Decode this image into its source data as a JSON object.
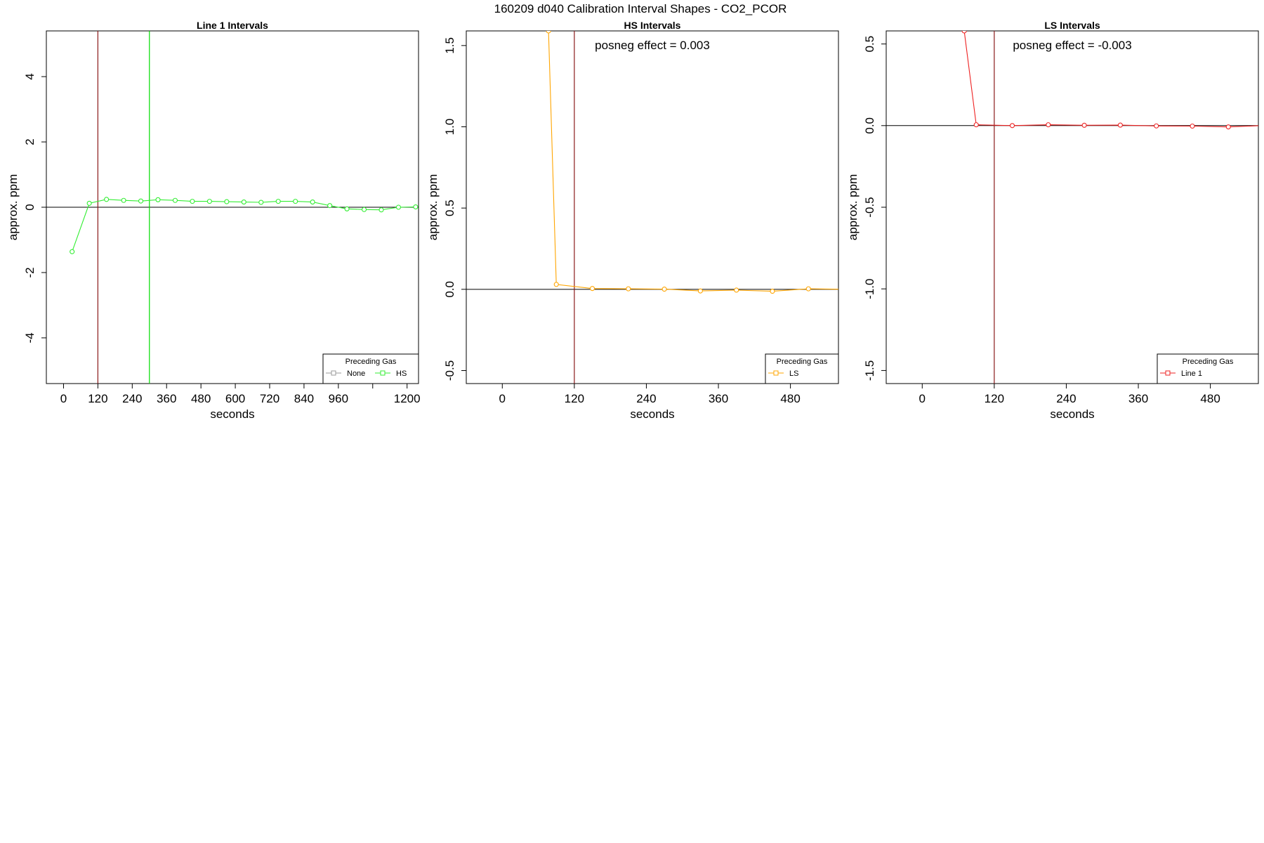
{
  "figure": {
    "title": "160209  d040   Calibration Interval Shapes - CO2_PCOR"
  },
  "chart_data": [
    {
      "type": "line",
      "title": "Line 1 Intervals",
      "xlabel": "seconds",
      "ylabel": "approx. ppm",
      "xlim": [
        -60,
        1240
      ],
      "ylim": [
        -5.4,
        5.4
      ],
      "xticks": [
        0,
        120,
        240,
        360,
        480,
        600,
        720,
        840,
        960,
        1080,
        1200
      ],
      "xtick_labels": [
        "0",
        "120",
        "240",
        "360",
        "480",
        "600",
        "720",
        "840",
        "960",
        "",
        "1200"
      ],
      "yticks": [
        -4,
        -2,
        0,
        2,
        4
      ],
      "ytick_labels": [
        "-4",
        "-2",
        "0",
        "2",
        "4"
      ],
      "hlines": [
        {
          "y": 0,
          "color": "#000000"
        }
      ],
      "vlines": [
        {
          "x": 120,
          "color": "#8b1a1a"
        },
        {
          "x": 300,
          "color": "#00dd00"
        }
      ],
      "annotation": "",
      "series": [
        {
          "name": "HS",
          "color": "#33ee33",
          "x": [
            30,
            90,
            150,
            210,
            270,
            330,
            390,
            450,
            510,
            570,
            630,
            690,
            750,
            810,
            870,
            930,
            990,
            1050,
            1110,
            1170,
            1230
          ],
          "y": [
            -1.36,
            0.12,
            0.24,
            0.21,
            0.19,
            0.23,
            0.21,
            0.18,
            0.18,
            0.17,
            0.16,
            0.15,
            0.18,
            0.18,
            0.16,
            0.05,
            -0.05,
            -0.07,
            -0.08,
            0.0,
            0.01
          ]
        }
      ],
      "legend": {
        "title": "Preceding Gas",
        "placement": "bottom-right",
        "items": [
          {
            "label": "None",
            "color": "#999999"
          },
          {
            "label": "HS",
            "color": "#33ee33"
          }
        ]
      }
    },
    {
      "type": "line",
      "title": "HS Intervals",
      "xlabel": "seconds",
      "ylabel": "approx. ppm",
      "xlim": [
        -60,
        560
      ],
      "ylim": [
        -0.58,
        1.59
      ],
      "xticks": [
        0,
        120,
        240,
        360,
        480
      ],
      "xtick_labels": [
        "0",
        "120",
        "240",
        "360",
        "480"
      ],
      "yticks": [
        -0.5,
        0.0,
        0.5,
        1.0,
        1.5
      ],
      "ytick_labels": [
        "-0.5",
        "0.0",
        "0.5",
        "1.0",
        "1.5"
      ],
      "hlines": [
        {
          "y": 0,
          "color": "#000000"
        }
      ],
      "vlines": [
        {
          "x": 120,
          "color": "#8b1a1a"
        }
      ],
      "annotation": "posneg effect = 0.003",
      "series": [
        {
          "name": "LS",
          "color": "#ffa500",
          "x": [
            77,
            90,
            150,
            210,
            270,
            330,
            390,
            450,
            510,
            570
          ],
          "y": [
            1.59,
            0.03,
            0.005,
            0.003,
            0.001,
            -0.01,
            -0.005,
            -0.012,
            0.003,
            0.0
          ]
        }
      ],
      "legend": {
        "title": "Preceding Gas",
        "placement": "bottom-right",
        "items": [
          {
            "label": "LS",
            "color": "#ffa500"
          }
        ]
      }
    },
    {
      "type": "line",
      "title": "LS Intervals",
      "xlabel": "seconds",
      "ylabel": "approx. ppm",
      "xlim": [
        -60,
        560
      ],
      "ylim": [
        -1.58,
        0.58
      ],
      "xticks": [
        0,
        120,
        240,
        360,
        480
      ],
      "xtick_labels": [
        "0",
        "120",
        "240",
        "360",
        "480"
      ],
      "yticks": [
        -1.5,
        -1.0,
        -0.5,
        0.0,
        0.5
      ],
      "ytick_labels": [
        "-1.5",
        "-1.0",
        "-0.5",
        "0.0",
        "0.5"
      ],
      "hlines": [
        {
          "y": 0,
          "color": "#000000"
        }
      ],
      "vlines": [
        {
          "x": 120,
          "color": "#8b1a1a"
        }
      ],
      "annotation": "posneg effect = -0.003",
      "series": [
        {
          "name": "Line 1",
          "color": "#ee2222",
          "x": [
            70,
            90,
            150,
            210,
            270,
            330,
            390,
            450,
            510,
            570
          ],
          "y": [
            0.58,
            0.005,
            0.0,
            0.005,
            0.002,
            0.003,
            -0.002,
            -0.003,
            -0.008,
            0.001
          ]
        }
      ],
      "legend": {
        "title": "Preceding Gas",
        "placement": "bottom-right",
        "items": [
          {
            "label": "Line 1",
            "color": "#ee2222"
          }
        ]
      }
    }
  ]
}
